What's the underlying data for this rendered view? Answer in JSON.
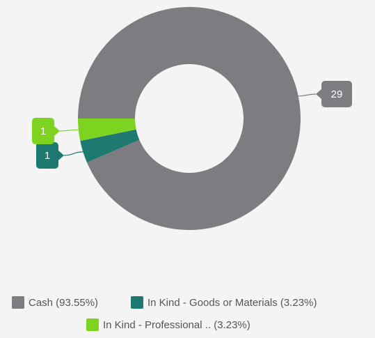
{
  "chart_data": {
    "type": "donut",
    "categories": [
      "Cash (93.55%)",
      "In Kind - Goods or Materials (3.23%)",
      "In Kind - Professional .. (3.23%)"
    ],
    "values": [
      29,
      1,
      1
    ],
    "colors": [
      "#7d7d81",
      "#1e7a70",
      "#7ed321"
    ]
  }
}
